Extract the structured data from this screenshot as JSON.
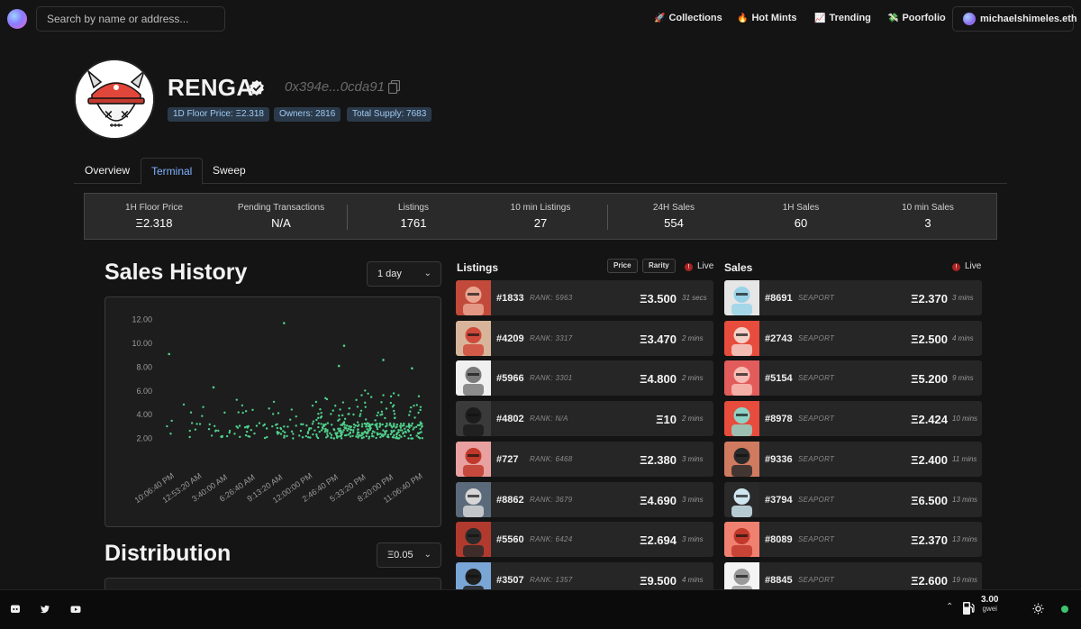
{
  "nav": {
    "search_placeholder": "Search by name or address...",
    "links": [
      {
        "emoji": "🚀",
        "label": "Collections"
      },
      {
        "emoji": "🔥",
        "label": "Hot Mints"
      },
      {
        "emoji": "📈",
        "label": "Trending"
      },
      {
        "emoji": "💸",
        "label": "Poorfolio"
      }
    ],
    "user": "michaelshimeles.eth"
  },
  "collection": {
    "name": "RENGA",
    "address": "0x394e...0cda91",
    "badges": {
      "floor": "1D Floor Price: Ξ2.318",
      "owners": "Owners: 2816",
      "supply": "Total Supply: 7683"
    }
  },
  "tabs": [
    "Overview",
    "Terminal",
    "Sweep"
  ],
  "stats": [
    {
      "label": "1H Floor Price",
      "value": "Ξ2.318"
    },
    {
      "label": "Pending Transactions",
      "value": "N/A"
    },
    {
      "label": "Listings",
      "value": "1761"
    },
    {
      "label": "10 min Listings",
      "value": "27"
    },
    {
      "label": "24H Sales",
      "value": "554"
    },
    {
      "label": "1H Sales",
      "value": "60"
    },
    {
      "label": "10 min Sales",
      "value": "3"
    }
  ],
  "sales_history": {
    "title": "Sales History",
    "range": "1 day"
  },
  "distribution": {
    "title": "Distribution",
    "bucket": "Ξ0.05"
  },
  "listings": {
    "title": "Listings",
    "sort_price": "Price",
    "sort_rarity": "Rarity",
    "live_label": "Live",
    "rows": [
      {
        "token": "#1833",
        "rank": "RANK: 5963",
        "price": "Ξ3.500",
        "time": "31 secs"
      },
      {
        "token": "#4209",
        "rank": "RANK: 3317",
        "price": "Ξ3.470",
        "time": "2 mins"
      },
      {
        "token": "#5966",
        "rank": "RANK: 3301",
        "price": "Ξ4.800",
        "time": "2 mins"
      },
      {
        "token": "#4802",
        "rank": "RANK: N/A",
        "price": "Ξ10",
        "time": "2 mins"
      },
      {
        "token": "#727",
        "rank": "RANK: 6468",
        "price": "Ξ2.380",
        "time": "3 mins"
      },
      {
        "token": "#8862",
        "rank": "RANK: 3679",
        "price": "Ξ4.690",
        "time": "3 mins"
      },
      {
        "token": "#5560",
        "rank": "RANK: 6424",
        "price": "Ξ2.694",
        "time": "3 mins"
      },
      {
        "token": "#3507",
        "rank": "RANK: 1357",
        "price": "Ξ9.500",
        "time": "4 mins"
      }
    ]
  },
  "sales": {
    "title": "Sales",
    "live_label": "Live",
    "rows": [
      {
        "token": "#8691",
        "market": "SEAPORT",
        "price": "Ξ2.370",
        "time": "3 mins"
      },
      {
        "token": "#2743",
        "market": "SEAPORT",
        "price": "Ξ2.500",
        "time": "4 mins"
      },
      {
        "token": "#5154",
        "market": "SEAPORT",
        "price": "Ξ5.200",
        "time": "9 mins"
      },
      {
        "token": "#8978",
        "market": "SEAPORT",
        "price": "Ξ2.424",
        "time": "10 mins"
      },
      {
        "token": "#9336",
        "market": "SEAPORT",
        "price": "Ξ2.400",
        "time": "11 mins"
      },
      {
        "token": "#3794",
        "market": "SEAPORT",
        "price": "Ξ6.500",
        "time": "13 mins"
      },
      {
        "token": "#8089",
        "market": "SEAPORT",
        "price": "Ξ2.370",
        "time": "13 mins"
      },
      {
        "token": "#8845",
        "market": "SEAPORT",
        "price": "Ξ2.600",
        "time": "19 mins"
      }
    ]
  },
  "gas": {
    "value": "3.00",
    "unit": "gwei"
  },
  "colors": {
    "accent": "#7fb2ff",
    "dot": "#4fd08b",
    "badge_bg": "#2b3a4a",
    "badge_fg": "#9fc9f2"
  },
  "chart_data": {
    "type": "scatter",
    "title": "Sales History",
    "xlabel": "",
    "ylabel": "",
    "ylim": [
      0,
      12.5
    ],
    "yticks": [
      "12.00",
      "10.00",
      "8.00",
      "6.00",
      "4.00",
      "2.00"
    ],
    "xticks": [
      "10:06:40 PM",
      "12:53:20 AM",
      "3:40:00 AM",
      "6:26:40 AM",
      "9:13:20 AM",
      "12:00:00 PM",
      "2:46:40 PM",
      "5:33:20 PM",
      "8:20:00 PM",
      "11:06:40 PM"
    ],
    "highlights": [
      {
        "x": 0.03,
        "y": 9.1
      },
      {
        "x": 0.2,
        "y": 6.3
      },
      {
        "x": 0.47,
        "y": 11.7
      },
      {
        "x": 0.7,
        "y": 9.8
      },
      {
        "x": 0.68,
        "y": 8.1
      },
      {
        "x": 0.85,
        "y": 8.6
      },
      {
        "x": 0.96,
        "y": 7.9
      }
    ]
  }
}
